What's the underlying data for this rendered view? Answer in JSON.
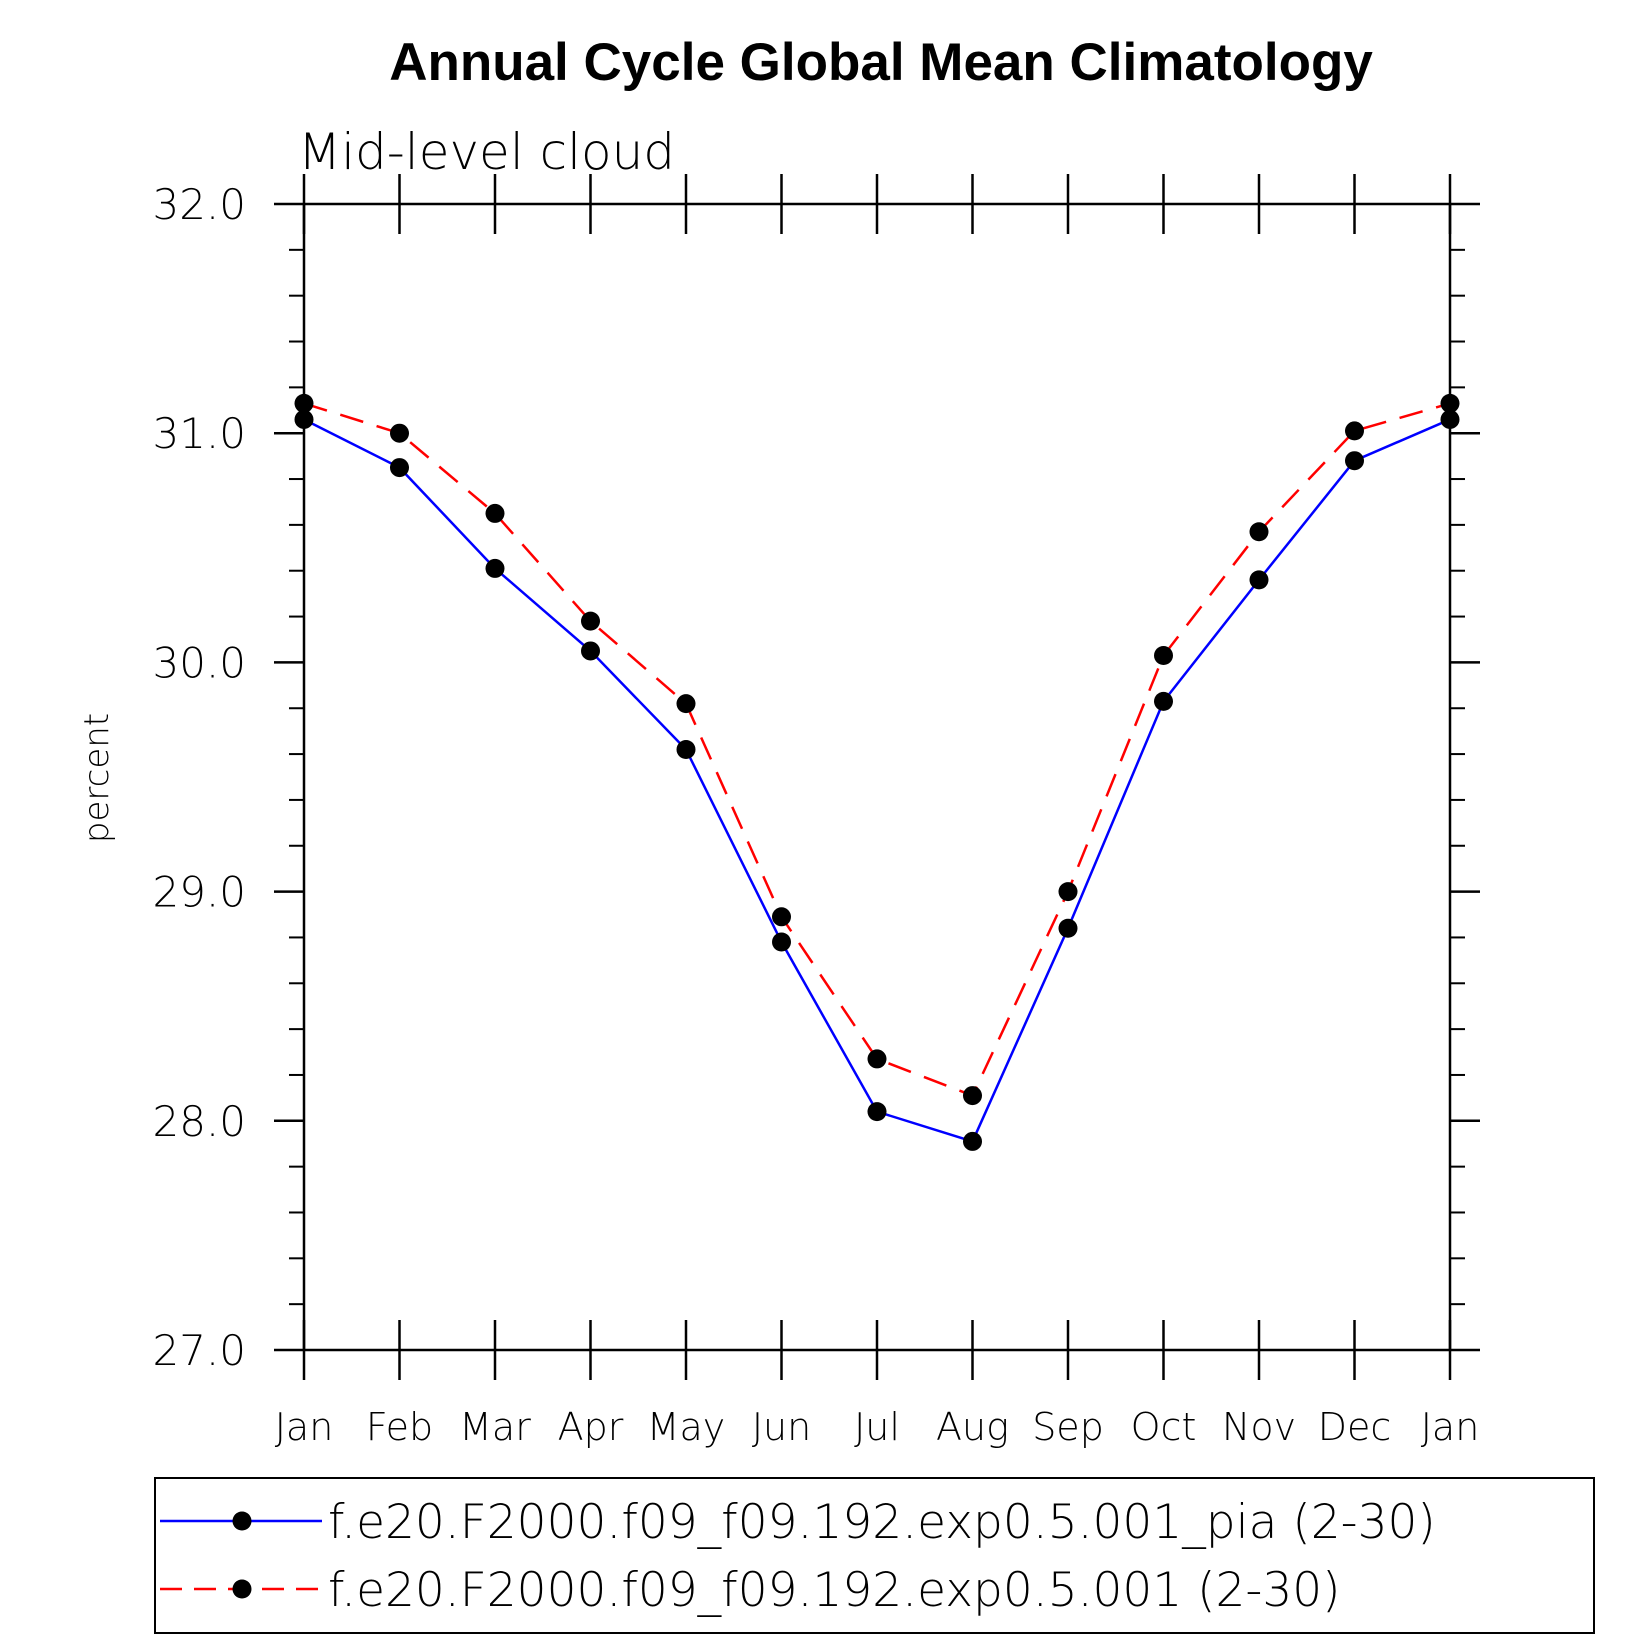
{
  "chart_data": {
    "type": "line",
    "title": "Annual Cycle Global Mean Climatology",
    "subtitle": "Mid-level cloud",
    "xlabel": "",
    "ylabel": "percent",
    "categories": [
      "Jan",
      "Feb",
      "Mar",
      "Apr",
      "May",
      "Jun",
      "Jul",
      "Aug",
      "Sep",
      "Oct",
      "Nov",
      "Dec",
      "Jan"
    ],
    "ylim": [
      27.0,
      32.0
    ],
    "yticks": [
      "27.0",
      "28.0",
      "29.0",
      "30.0",
      "31.0",
      "32.0"
    ],
    "grid": false,
    "legend_position": "bottom",
    "series": [
      {
        "name": "f.e20.F2000.f09_f09.192.exp0.5.001_pia (2-30)",
        "color": "#0000ff",
        "dash": "solid",
        "marker": "filled-circle",
        "values": [
          31.06,
          30.85,
          30.41,
          30.05,
          29.62,
          28.78,
          28.04,
          27.91,
          28.84,
          29.83,
          30.36,
          30.88,
          31.06
        ]
      },
      {
        "name": "f.e20.F2000.f09_f09.192.exp0.5.001 (2-30)",
        "color": "#ff0000",
        "dash": "dashed",
        "marker": "filled-circle",
        "values": [
          31.13,
          31.0,
          30.65,
          30.18,
          29.82,
          28.89,
          28.27,
          28.11,
          29.0,
          30.03,
          30.57,
          31.01,
          31.13
        ]
      }
    ]
  }
}
